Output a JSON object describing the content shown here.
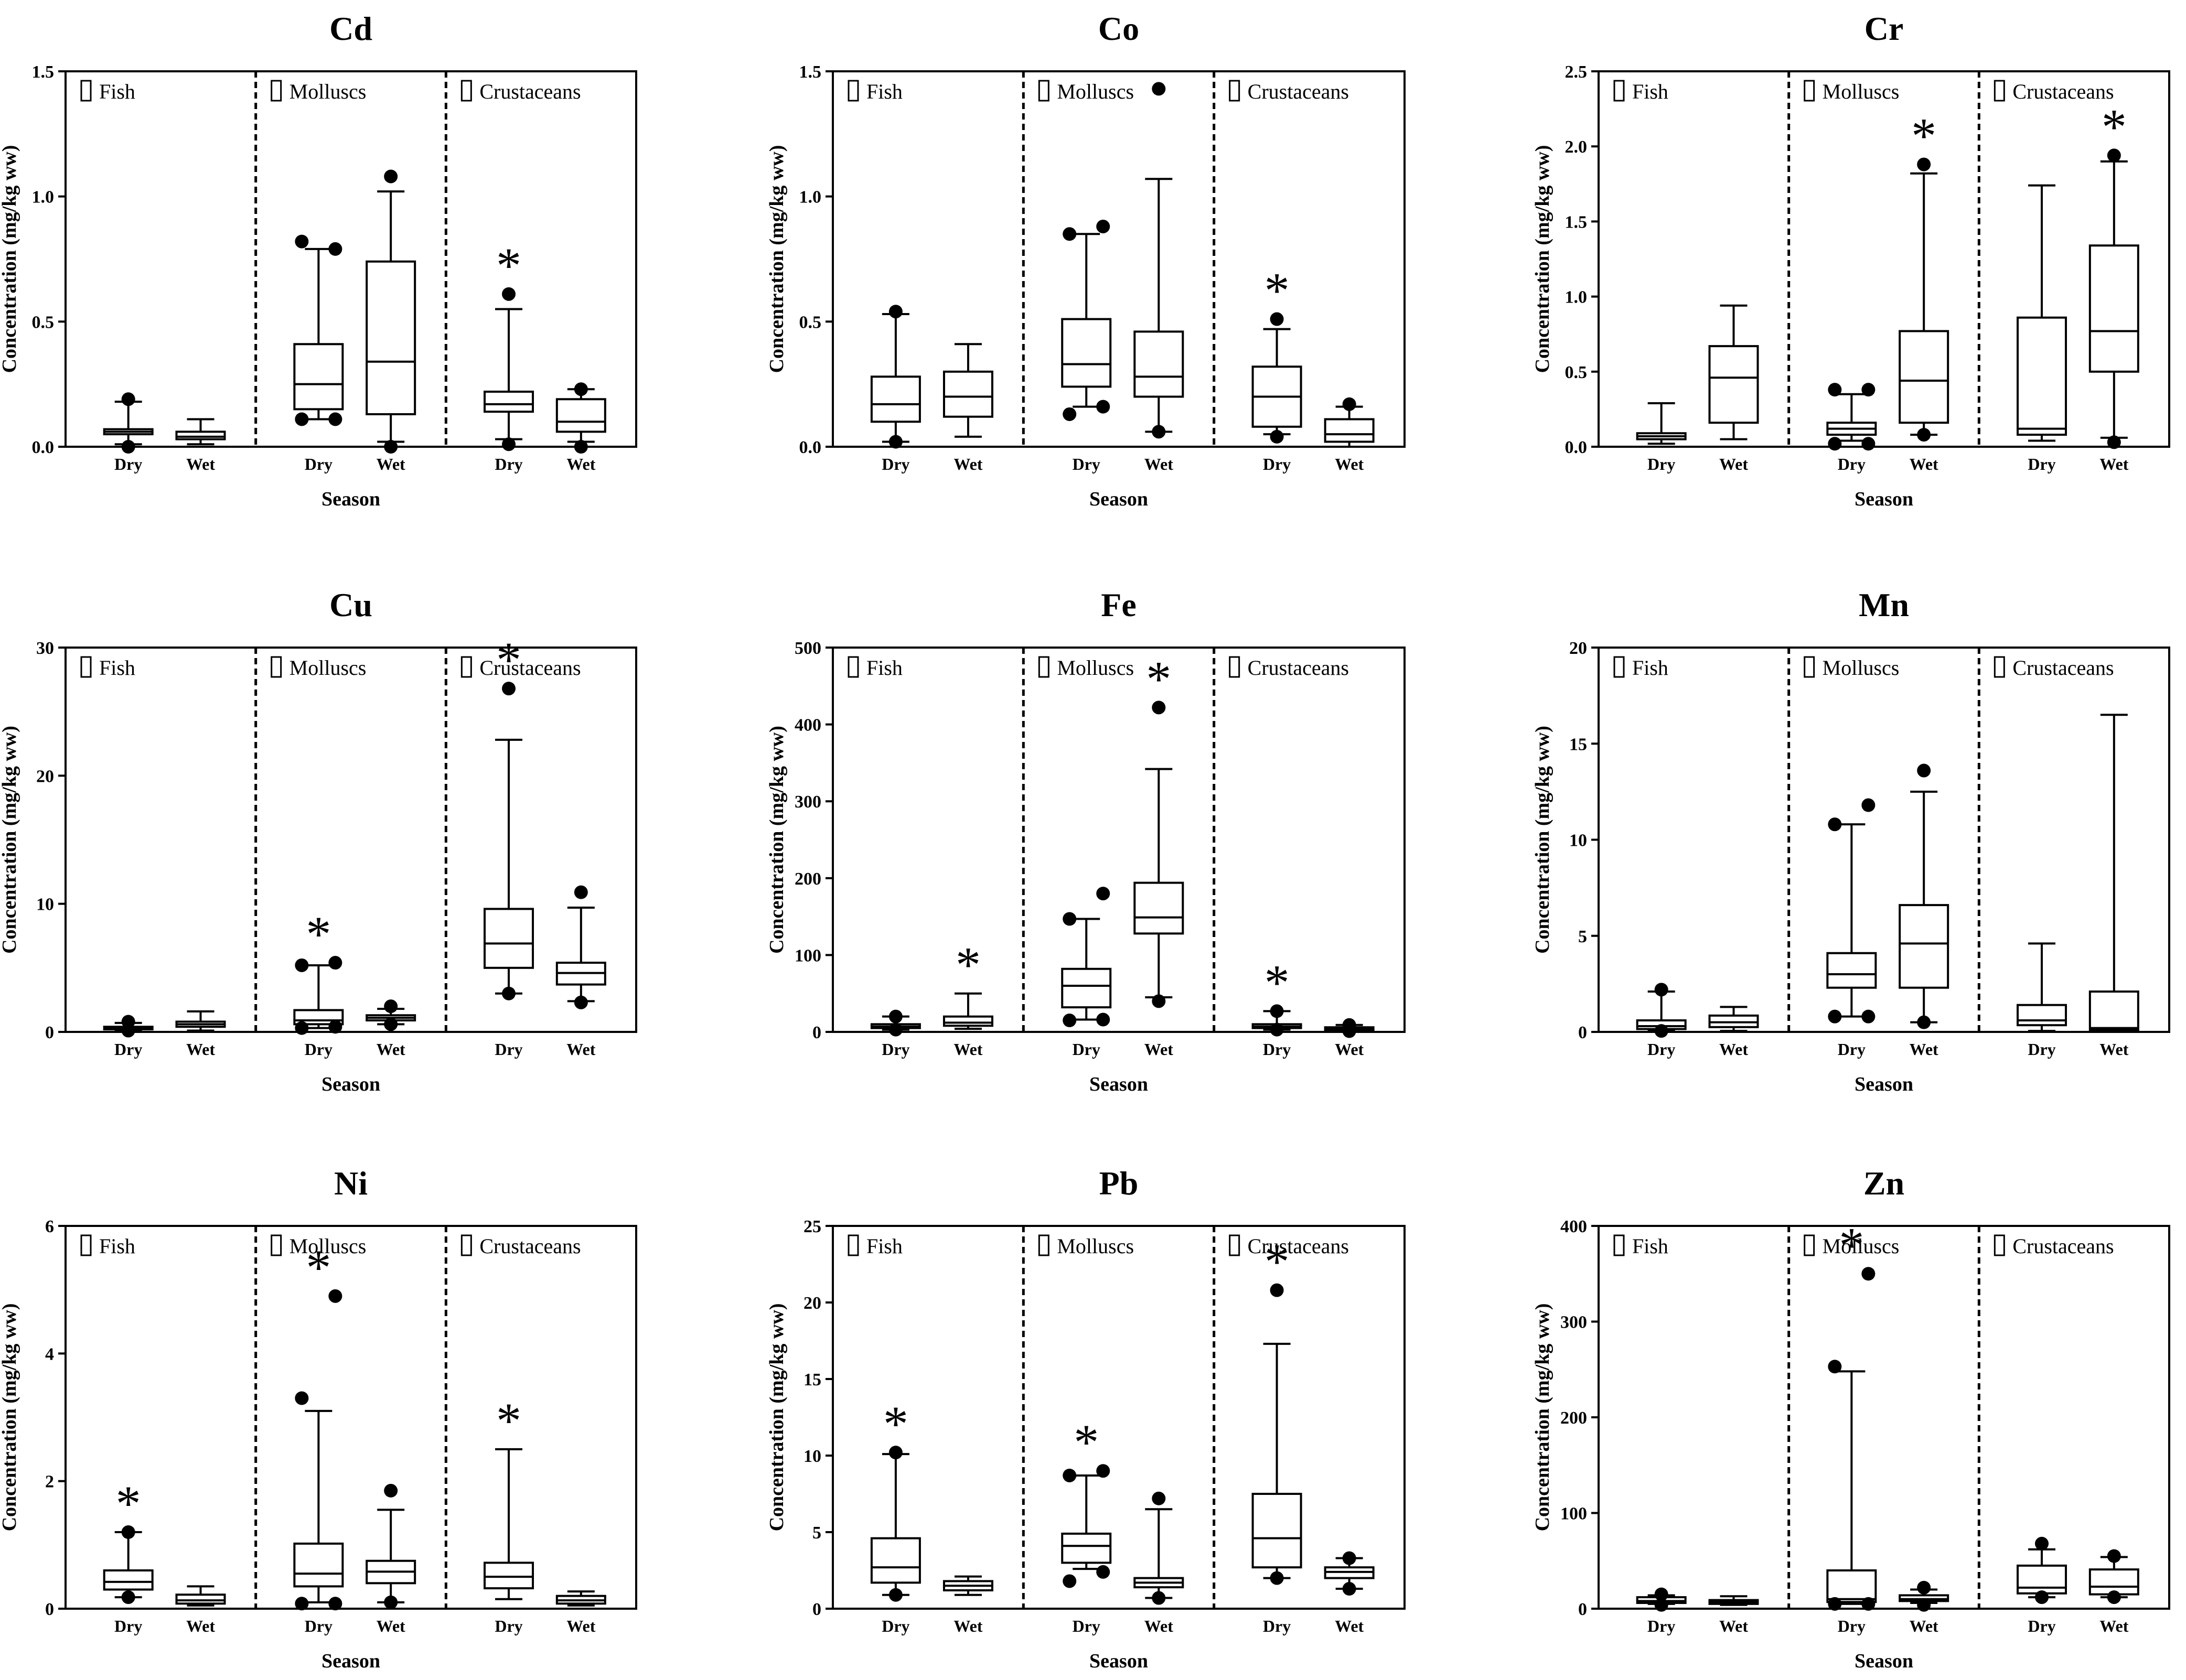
{
  "chart_data": [
    {
      "type": "box",
      "title": "Cd",
      "ylabel": "Concentration (mg/kg ww)",
      "xlabel": "Season",
      "ylim": [
        0,
        1.5
      ],
      "yticks": [
        "0.0",
        "0.5",
        "1.0",
        "1.5"
      ],
      "groups": [
        "Fish",
        "Molluscs",
        "Crustaceans"
      ],
      "boxes": [
        {
          "group": "Fish",
          "season": "Dry",
          "min": 0.01,
          "q1": 0.05,
          "median": 0.06,
          "q3": 0.07,
          "max": 0.18,
          "outliers": [
            0.19,
            0.0
          ],
          "star": false
        },
        {
          "group": "Fish",
          "season": "Wet",
          "min": 0.01,
          "q1": 0.03,
          "median": 0.04,
          "q3": 0.06,
          "max": 0.11,
          "outliers": [],
          "star": false
        },
        {
          "group": "Molluscs",
          "season": "Dry",
          "min": 0.11,
          "q1": 0.15,
          "median": 0.25,
          "q3": 0.41,
          "max": 0.79,
          "outliers": [
            0.11,
            0.11,
            0.79,
            0.82
          ],
          "star": false
        },
        {
          "group": "Molluscs",
          "season": "Wet",
          "min": 0.02,
          "q1": 0.13,
          "median": 0.34,
          "q3": 0.74,
          "max": 1.02,
          "outliers": [
            1.08,
            0.0
          ],
          "star": false
        },
        {
          "group": "Crustaceans",
          "season": "Dry",
          "min": 0.03,
          "q1": 0.14,
          "median": 0.17,
          "q3": 0.22,
          "max": 0.55,
          "outliers": [
            0.61,
            0.01
          ],
          "star": true
        },
        {
          "group": "Crustaceans",
          "season": "Wet",
          "min": 0.02,
          "q1": 0.06,
          "median": 0.1,
          "q3": 0.19,
          "max": 0.23,
          "outliers": [
            0.23,
            0.0
          ],
          "star": false
        }
      ]
    },
    {
      "type": "box",
      "title": "Co",
      "ylabel": "Concentration (mg/kg ww)",
      "xlabel": "Season",
      "ylim": [
        0,
        1.5
      ],
      "yticks": [
        "0.0",
        "0.5",
        "1.0",
        "1.5"
      ],
      "groups": [
        "Fish",
        "Molluscs",
        "Crustaceans"
      ],
      "boxes": [
        {
          "group": "Fish",
          "season": "Dry",
          "min": 0.02,
          "q1": 0.1,
          "median": 0.17,
          "q3": 0.28,
          "max": 0.53,
          "outliers": [
            0.54,
            0.02
          ],
          "star": false
        },
        {
          "group": "Fish",
          "season": "Wet",
          "min": 0.04,
          "q1": 0.12,
          "median": 0.2,
          "q3": 0.3,
          "max": 0.41,
          "outliers": [],
          "star": false
        },
        {
          "group": "Molluscs",
          "season": "Dry",
          "min": 0.16,
          "q1": 0.24,
          "median": 0.33,
          "q3": 0.51,
          "max": 0.85,
          "outliers": [
            0.88,
            0.85,
            0.16,
            0.13
          ],
          "star": false
        },
        {
          "group": "Molluscs",
          "season": "Wet",
          "min": 0.06,
          "q1": 0.2,
          "median": 0.28,
          "q3": 0.46,
          "max": 1.07,
          "outliers": [
            1.43,
            0.06
          ],
          "star": false
        },
        {
          "group": "Crustaceans",
          "season": "Dry",
          "min": 0.05,
          "q1": 0.08,
          "median": 0.2,
          "q3": 0.32,
          "max": 0.47,
          "outliers": [
            0.51,
            0.04
          ],
          "star": true
        },
        {
          "group": "Crustaceans",
          "season": "Wet",
          "min": 0.0,
          "q1": 0.02,
          "median": 0.05,
          "q3": 0.11,
          "max": 0.16,
          "outliers": [
            0.17
          ],
          "star": false
        }
      ]
    },
    {
      "type": "box",
      "title": "Cr",
      "ylabel": "Concentration (mg/kg ww)",
      "xlabel": "Season",
      "ylim": [
        0,
        2.5
      ],
      "yticks": [
        "0.0",
        "0.5",
        "1.0",
        "1.5",
        "2.0",
        "2.5"
      ],
      "groups": [
        "Fish",
        "Molluscs",
        "Crustaceans"
      ],
      "boxes": [
        {
          "group": "Fish",
          "season": "Dry",
          "min": 0.02,
          "q1": 0.05,
          "median": 0.07,
          "q3": 0.09,
          "max": 0.29,
          "outliers": [],
          "star": false
        },
        {
          "group": "Fish",
          "season": "Wet",
          "min": 0.05,
          "q1": 0.16,
          "median": 0.46,
          "q3": 0.67,
          "max": 0.94,
          "outliers": [],
          "star": false
        },
        {
          "group": "Molluscs",
          "season": "Dry",
          "min": 0.04,
          "q1": 0.08,
          "median": 0.12,
          "q3": 0.16,
          "max": 0.35,
          "outliers": [
            0.38,
            0.38,
            0.02,
            0.02
          ],
          "star": false
        },
        {
          "group": "Molluscs",
          "season": "Wet",
          "min": 0.08,
          "q1": 0.16,
          "median": 0.44,
          "q3": 0.77,
          "max": 1.82,
          "outliers": [
            1.88,
            0.08
          ],
          "star": true
        },
        {
          "group": "Crustaceans",
          "season": "Dry",
          "min": 0.04,
          "q1": 0.08,
          "median": 0.12,
          "q3": 0.86,
          "max": 1.74,
          "outliers": [],
          "star": false
        },
        {
          "group": "Crustaceans",
          "season": "Wet",
          "min": 0.06,
          "q1": 0.5,
          "median": 0.77,
          "q3": 1.34,
          "max": 1.9,
          "outliers": [
            1.94,
            0.03
          ],
          "star": true
        }
      ]
    },
    {
      "type": "box",
      "title": "Cu",
      "ylabel": "Concentration (mg/kg ww)",
      "xlabel": "Season",
      "ylim": [
        0,
        30
      ],
      "yticks": [
        "0",
        "10",
        "20",
        "30"
      ],
      "groups": [
        "Fish",
        "Molluscs",
        "Crustaceans"
      ],
      "boxes": [
        {
          "group": "Fish",
          "season": "Dry",
          "min": 0.1,
          "q1": 0.2,
          "median": 0.3,
          "q3": 0.4,
          "max": 0.7,
          "outliers": [
            0.8,
            0.1
          ],
          "star": false
        },
        {
          "group": "Fish",
          "season": "Wet",
          "min": 0.1,
          "q1": 0.4,
          "median": 0.6,
          "q3": 0.8,
          "max": 1.6,
          "outliers": [],
          "star": false
        },
        {
          "group": "Molluscs",
          "season": "Dry",
          "min": 0.3,
          "q1": 0.6,
          "median": 0.9,
          "q3": 1.7,
          "max": 5.2,
          "outliers": [
            5.4,
            5.2,
            0.4,
            0.3
          ],
          "star": true
        },
        {
          "group": "Molluscs",
          "season": "Wet",
          "min": 0.6,
          "q1": 0.9,
          "median": 1.1,
          "q3": 1.3,
          "max": 1.8,
          "outliers": [
            2.0,
            0.6
          ],
          "star": false
        },
        {
          "group": "Crustaceans",
          "season": "Dry",
          "min": 3.0,
          "q1": 5.0,
          "median": 6.9,
          "q3": 9.6,
          "max": 22.8,
          "outliers": [
            26.8,
            3.0
          ],
          "star": true
        },
        {
          "group": "Crustaceans",
          "season": "Wet",
          "min": 2.4,
          "q1": 3.7,
          "median": 4.6,
          "q3": 5.4,
          "max": 9.7,
          "outliers": [
            10.9,
            2.3
          ],
          "star": false
        }
      ]
    },
    {
      "type": "box",
      "title": "Fe",
      "ylabel": "Concentration (mg/kg ww)",
      "xlabel": "Season",
      "ylim": [
        0,
        500
      ],
      "yticks": [
        "0",
        "100",
        "200",
        "300",
        "400",
        "500"
      ],
      "groups": [
        "Fish",
        "Molluscs",
        "Crustaceans"
      ],
      "boxes": [
        {
          "group": "Fish",
          "season": "Dry",
          "min": 3,
          "q1": 5,
          "median": 7,
          "q3": 10,
          "max": 20,
          "outliers": [
            20,
            3
          ],
          "star": false
        },
        {
          "group": "Fish",
          "season": "Wet",
          "min": 4,
          "q1": 8,
          "median": 12,
          "q3": 20,
          "max": 50,
          "outliers": [],
          "star": true
        },
        {
          "group": "Molluscs",
          "season": "Dry",
          "min": 16,
          "q1": 32,
          "median": 60,
          "q3": 82,
          "max": 147,
          "outliers": [
            180,
            147,
            16,
            15
          ],
          "star": false
        },
        {
          "group": "Molluscs",
          "season": "Wet",
          "min": 45,
          "q1": 128,
          "median": 149,
          "q3": 194,
          "max": 342,
          "outliers": [
            422,
            40
          ],
          "star": true
        },
        {
          "group": "Crustaceans",
          "season": "Dry",
          "min": 3,
          "q1": 5,
          "median": 7,
          "q3": 10,
          "max": 27,
          "outliers": [
            27,
            3
          ],
          "star": true
        },
        {
          "group": "Crustaceans",
          "season": "Wet",
          "min": 1,
          "q1": 2,
          "median": 4,
          "q3": 6,
          "max": 9,
          "outliers": [
            9,
            1
          ],
          "star": false
        }
      ]
    },
    {
      "type": "box",
      "title": "Mn",
      "ylabel": "Concentration (mg/kg ww)",
      "xlabel": "Season",
      "ylim": [
        0,
        20
      ],
      "yticks": [
        "0",
        "5",
        "10",
        "15",
        "20"
      ],
      "groups": [
        "Fish",
        "Molluscs",
        "Crustaceans"
      ],
      "boxes": [
        {
          "group": "Fish",
          "season": "Dry",
          "min": 0.05,
          "q1": 0.15,
          "median": 0.3,
          "q3": 0.6,
          "max": 2.1,
          "outliers": [
            2.2,
            0.05
          ],
          "star": false
        },
        {
          "group": "Fish",
          "season": "Wet",
          "min": 0.05,
          "q1": 0.25,
          "median": 0.5,
          "q3": 0.85,
          "max": 1.3,
          "outliers": [],
          "star": false
        },
        {
          "group": "Molluscs",
          "season": "Dry",
          "min": 0.8,
          "q1": 2.3,
          "median": 3.0,
          "q3": 4.1,
          "max": 10.8,
          "outliers": [
            11.8,
            10.8,
            0.8,
            0.8
          ],
          "star": false
        },
        {
          "group": "Molluscs",
          "season": "Wet",
          "min": 0.5,
          "q1": 2.3,
          "median": 4.6,
          "q3": 6.6,
          "max": 12.5,
          "outliers": [
            13.6,
            0.5
          ],
          "star": false
        },
        {
          "group": "Crustaceans",
          "season": "Dry",
          "min": 0.05,
          "q1": 0.35,
          "median": 0.6,
          "q3": 1.4,
          "max": 4.6,
          "outliers": [],
          "star": false
        },
        {
          "group": "Crustaceans",
          "season": "Wet",
          "min": 0.05,
          "q1": 0.1,
          "median": 0.2,
          "q3": 2.1,
          "max": 16.5,
          "outliers": [],
          "star": false
        }
      ]
    },
    {
      "type": "box",
      "title": "Ni",
      "ylabel": "Concentration (mg/kg ww)",
      "xlabel": "Season",
      "ylim": [
        0,
        6
      ],
      "yticks": [
        "0",
        "2",
        "4",
        "6"
      ],
      "groups": [
        "Fish",
        "Molluscs",
        "Crustaceans"
      ],
      "boxes": [
        {
          "group": "Fish",
          "season": "Dry",
          "min": 0.18,
          "q1": 0.3,
          "median": 0.42,
          "q3": 0.6,
          "max": 1.2,
          "outliers": [
            1.2,
            0.18
          ],
          "star": true
        },
        {
          "group": "Fish",
          "season": "Wet",
          "min": 0.05,
          "q1": 0.08,
          "median": 0.13,
          "q3": 0.22,
          "max": 0.35,
          "outliers": [],
          "star": false
        },
        {
          "group": "Molluscs",
          "season": "Dry",
          "min": 0.1,
          "q1": 0.35,
          "median": 0.55,
          "q3": 1.02,
          "max": 3.1,
          "outliers": [
            4.9,
            3.3,
            0.08,
            0.08
          ],
          "star": true
        },
        {
          "group": "Molluscs",
          "season": "Wet",
          "min": 0.1,
          "q1": 0.4,
          "median": 0.58,
          "q3": 0.75,
          "max": 1.55,
          "outliers": [
            1.85,
            0.1
          ],
          "star": false
        },
        {
          "group": "Crustaceans",
          "season": "Dry",
          "min": 0.15,
          "q1": 0.32,
          "median": 0.5,
          "q3": 0.72,
          "max": 2.5,
          "outliers": [],
          "star": true
        },
        {
          "group": "Crustaceans",
          "season": "Wet",
          "min": 0.05,
          "q1": 0.08,
          "median": 0.13,
          "q3": 0.2,
          "max": 0.27,
          "outliers": [],
          "star": false
        }
      ]
    },
    {
      "type": "box",
      "title": "Pb",
      "ylabel": "Concentration (mg/kg ww)",
      "xlabel": "Season",
      "ylim": [
        0,
        25
      ],
      "yticks": [
        "0",
        "5",
        "10",
        "15",
        "20",
        "25"
      ],
      "groups": [
        "Fish",
        "Molluscs",
        "Crustaceans"
      ],
      "boxes": [
        {
          "group": "Fish",
          "season": "Dry",
          "min": 0.9,
          "q1": 1.7,
          "median": 2.7,
          "q3": 4.6,
          "max": 10.1,
          "outliers": [
            10.2,
            0.9
          ],
          "star": true
        },
        {
          "group": "Fish",
          "season": "Wet",
          "min": 0.9,
          "q1": 1.2,
          "median": 1.5,
          "q3": 1.8,
          "max": 2.1,
          "outliers": [],
          "star": false
        },
        {
          "group": "Molluscs",
          "season": "Dry",
          "min": 2.6,
          "q1": 3.0,
          "median": 4.1,
          "q3": 4.9,
          "max": 8.7,
          "outliers": [
            9.0,
            8.7,
            2.4,
            1.8
          ],
          "star": true
        },
        {
          "group": "Molluscs",
          "season": "Wet",
          "min": 0.7,
          "q1": 1.4,
          "median": 1.7,
          "q3": 2.0,
          "max": 6.5,
          "outliers": [
            7.2,
            0.7
          ],
          "star": false
        },
        {
          "group": "Crustaceans",
          "season": "Dry",
          "min": 2.0,
          "q1": 2.7,
          "median": 4.6,
          "q3": 7.5,
          "max": 17.3,
          "outliers": [
            20.8,
            2.0
          ],
          "star": true
        },
        {
          "group": "Crustaceans",
          "season": "Wet",
          "min": 1.3,
          "q1": 2.0,
          "median": 2.4,
          "q3": 2.7,
          "max": 3.3,
          "outliers": [
            3.3,
            1.3
          ],
          "star": false
        }
      ]
    },
    {
      "type": "box",
      "title": "Zn",
      "ylabel": "Concentration (mg/kg ww)",
      "xlabel": "Season",
      "ylim": [
        0,
        400
      ],
      "yticks": [
        "0",
        "100",
        "200",
        "300",
        "400"
      ],
      "groups": [
        "Fish",
        "Molluscs",
        "Crustaceans"
      ],
      "boxes": [
        {
          "group": "Fish",
          "season": "Dry",
          "min": 5,
          "q1": 6,
          "median": 8,
          "q3": 12,
          "max": 14,
          "outliers": [
            15,
            4
          ],
          "star": false
        },
        {
          "group": "Fish",
          "season": "Wet",
          "min": 4,
          "q1": 5,
          "median": 7,
          "q3": 9,
          "max": 13,
          "outliers": [],
          "star": false
        },
        {
          "group": "Molluscs",
          "season": "Dry",
          "min": 5,
          "q1": 7,
          "median": 10,
          "q3": 40,
          "max": 248,
          "outliers": [
            350,
            253,
            5,
            5
          ],
          "star": true
        },
        {
          "group": "Molluscs",
          "season": "Wet",
          "min": 6,
          "q1": 8,
          "median": 10,
          "q3": 14,
          "max": 20,
          "outliers": [
            22,
            4
          ],
          "star": false
        },
        {
          "group": "Crustaceans",
          "season": "Dry",
          "min": 12,
          "q1": 16,
          "median": 22,
          "q3": 45,
          "max": 62,
          "outliers": [
            68,
            12
          ],
          "star": false
        },
        {
          "group": "Crustaceans",
          "season": "Wet",
          "min": 12,
          "q1": 15,
          "median": 23,
          "q3": 41,
          "max": 54,
          "outliers": [
            55,
            12
          ],
          "star": false
        }
      ]
    }
  ]
}
